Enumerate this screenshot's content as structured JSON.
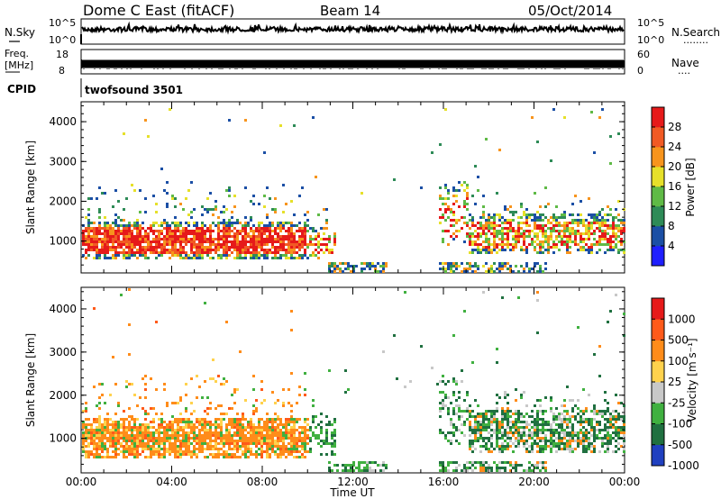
{
  "header": {
    "station": "Dome C East (fitACF)",
    "beam": "Beam 14",
    "date": "05/Oct/2014"
  },
  "panels": {
    "sky": {
      "left_label": "N.Sky",
      "right_label": "N.Search",
      "left_ticks": [
        "10^5",
        "10^0"
      ],
      "right_ticks": [
        "10^5",
        "10^0"
      ],
      "right_dots": "........"
    },
    "freq": {
      "left_label_line1": "Freq.",
      "left_label_line2": "[MHz]",
      "right_label": "Nave",
      "left_ticks": [
        "18",
        "8"
      ],
      "right_ticks": [
        "60",
        "0"
      ],
      "right_dots": "...."
    },
    "cpid": {
      "label": "CPID",
      "value": "twofsound 3501"
    }
  },
  "colors": {
    "power": [
      "#1f1fff",
      "#1b4fa5",
      "#2e8b57",
      "#5fba46",
      "#e6e02a",
      "#f7941d",
      "#f15a24",
      "#e61a1a"
    ],
    "velocity": [
      "#2040c0",
      "#207040",
      "#40b040",
      "#c8c8c8",
      "#ffd24d",
      "#ff8c1a",
      "#ff5a1a",
      "#e61a1a"
    ]
  },
  "chart_data": [
    {
      "type": "heatmap",
      "title": "",
      "xlabel": "",
      "ylabel": "Slant Range [km]",
      "x_ticks": [
        "00:00",
        "04:00",
        "08:00",
        "12:00",
        "16:00",
        "20:00",
        "00:00"
      ],
      "y_ticks": [
        1000,
        2000,
        3000,
        4000
      ],
      "ylim": [
        200,
        4500
      ],
      "colorbar": {
        "label": "Power [dB]",
        "ticks": [
          "4",
          "8",
          "12",
          "16",
          "20",
          "24",
          "28"
        ],
        "range": [
          0,
          30
        ]
      }
    },
    {
      "type": "heatmap",
      "title": "",
      "xlabel": "Time UT",
      "ylabel": "Slant Range [km]",
      "x_ticks": [
        "00:00",
        "04:00",
        "08:00",
        "12:00",
        "16:00",
        "20:00",
        "00:00"
      ],
      "y_ticks": [
        1000,
        2000,
        3000,
        4000
      ],
      "ylim": [
        200,
        4500
      ],
      "colorbar": {
        "label": "Velocity [m s⁻¹]",
        "ticks": [
          "1000",
          "500",
          "100",
          "25",
          "-25",
          "-100",
          "-500",
          "-1000"
        ]
      }
    }
  ]
}
